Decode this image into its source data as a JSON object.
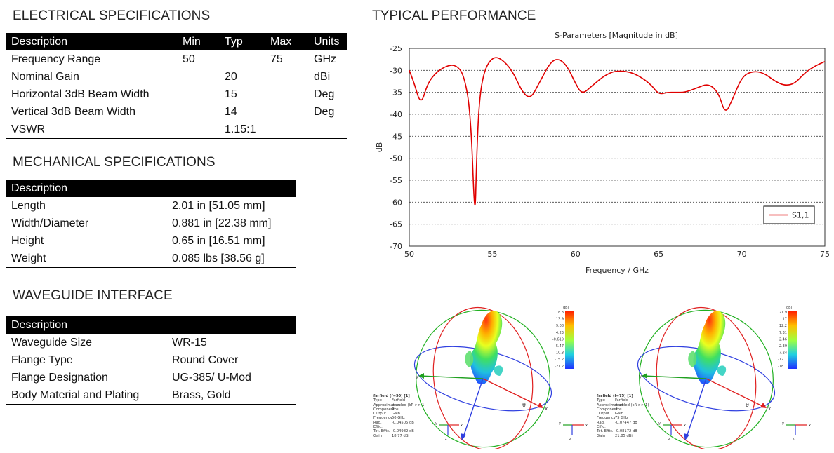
{
  "electrical": {
    "title": "ELECTRICAL SPECIFICATIONS",
    "headers": [
      "Description",
      "Min",
      "Typ",
      "Max",
      "Units"
    ],
    "rows": [
      [
        "Frequency Range",
        "50",
        "",
        "75",
        "GHz"
      ],
      [
        "Nominal Gain",
        "",
        "20",
        "",
        "dBi"
      ],
      [
        "Horizontal 3dB Beam Width",
        "",
        "15",
        "",
        "Deg"
      ],
      [
        "Vertical 3dB Beam Width",
        "",
        "14",
        "",
        "Deg"
      ],
      [
        "VSWR",
        "",
        "1.15:1",
        "",
        ""
      ]
    ]
  },
  "mechanical": {
    "title": "MECHANICAL SPECIFICATIONS",
    "header": "Description",
    "rows": [
      [
        "Length",
        "2.01 in [51.05 mm]"
      ],
      [
        "Width/Diameter",
        "0.881 in [22.38 mm]"
      ],
      [
        "Height",
        "0.65 in [16.51 mm]"
      ],
      [
        "Weight",
        "0.085 lbs [38.56 g]"
      ]
    ]
  },
  "waveguide": {
    "title": "WAVEGUIDE INTERFACE",
    "header": "Description",
    "rows": [
      [
        "Waveguide Size",
        "WR-15"
      ],
      [
        "Flange Type",
        "Round Cover"
      ],
      [
        "Flange Designation",
        "UG-385/ U-Mod"
      ],
      [
        "Body Material and Plating",
        "Brass, Gold"
      ]
    ]
  },
  "performance": {
    "title": "TYPICAL PERFORMANCE"
  },
  "chart_data": {
    "type": "line",
    "title": "S-Parameters [Magnitude in dB]",
    "xlabel": "Frequency / GHz",
    "ylabel": "dB",
    "xlim": [
      50,
      75
    ],
    "ylim": [
      -70,
      -25
    ],
    "xticks": [
      50,
      55,
      60,
      65,
      70,
      75
    ],
    "yticks": [
      -25,
      -30,
      -35,
      -40,
      -45,
      -50,
      -55,
      -60,
      -65,
      -70
    ],
    "grid": true,
    "legend_position": "bottom-right",
    "series": [
      {
        "name": "S1,1",
        "color": "#e00000",
        "x": [
          50,
          50.3,
          50.7,
          51.1,
          51.6,
          52.2,
          52.8,
          53.3,
          53.7,
          53.95,
          54.05,
          54.2,
          54.5,
          55.0,
          55.5,
          56.2,
          56.8,
          57.3,
          57.8,
          58.5,
          59.0,
          59.5,
          60.0,
          60.4,
          61.0,
          61.8,
          62.5,
          63.5,
          64.5,
          65.0,
          65.5,
          66.0,
          66.6,
          67.3,
          68.0,
          68.6,
          69.0,
          69.4,
          70.0,
          70.6,
          71.3,
          72.0,
          72.6,
          73.2,
          73.8,
          74.4,
          75.0
        ],
        "y": [
          -30,
          -33,
          -38,
          -33,
          -30.5,
          -29,
          -28.7,
          -31,
          -40,
          -65.5,
          -50,
          -37,
          -30,
          -27,
          -27.2,
          -30,
          -35,
          -36.5,
          -33,
          -28,
          -27.3,
          -29,
          -33,
          -35.5,
          -33.5,
          -31,
          -30,
          -30.5,
          -33,
          -35.5,
          -35,
          -35,
          -35,
          -34,
          -33,
          -35,
          -40,
          -37,
          -31.5,
          -30.2,
          -30.5,
          -32.5,
          -33.5,
          -33,
          -30.5,
          -29,
          -28
        ]
      }
    ]
  },
  "farfields": [
    {
      "title": "farfield (f=50) [1]",
      "colorbar_unit": "dBi",
      "colorbar_ticks": [
        "18.8",
        "13.9",
        "9.08",
        "4.23",
        "-0.619",
        "-5.47",
        "-10.3",
        "-15.2",
        "-21.2"
      ],
      "info": [
        [
          "Type",
          "Farfield"
        ],
        [
          "Approximation",
          "enabled (kR >> 1)"
        ],
        [
          "Component",
          "Abs"
        ],
        [
          "Output",
          "Gain"
        ],
        [
          "Frequency",
          "50 GHz"
        ],
        [
          "Rad. Effic.",
          "-0.04505 dB"
        ],
        [
          "Tot. Effic.",
          "-0.04982 dB"
        ],
        [
          "Gain",
          "18.77 dBi"
        ]
      ],
      "axis_labels": [
        "x",
        "y",
        "z"
      ],
      "theta_label": "θ"
    },
    {
      "title": "farfield (f=75) [1]",
      "colorbar_unit": "dBi",
      "colorbar_ticks": [
        "21.9",
        "17",
        "12.2",
        "7.31",
        "2.46",
        "-2.39",
        "-7.24",
        "-12.1",
        "-18.1"
      ],
      "info": [
        [
          "Type",
          "Farfield"
        ],
        [
          "Approximation",
          "enabled (kR >> 1)"
        ],
        [
          "Component",
          "Abs"
        ],
        [
          "Output",
          "Gain"
        ],
        [
          "Frequency",
          "75 GHz"
        ],
        [
          "Rad. Effic.",
          "-0.07447 dB"
        ],
        [
          "Tot. Effic.",
          "-0.08172 dB"
        ],
        [
          "Gain",
          "21.85 dBi"
        ]
      ],
      "axis_labels": [
        "x",
        "y",
        "z"
      ],
      "theta_label": "θ"
    }
  ]
}
